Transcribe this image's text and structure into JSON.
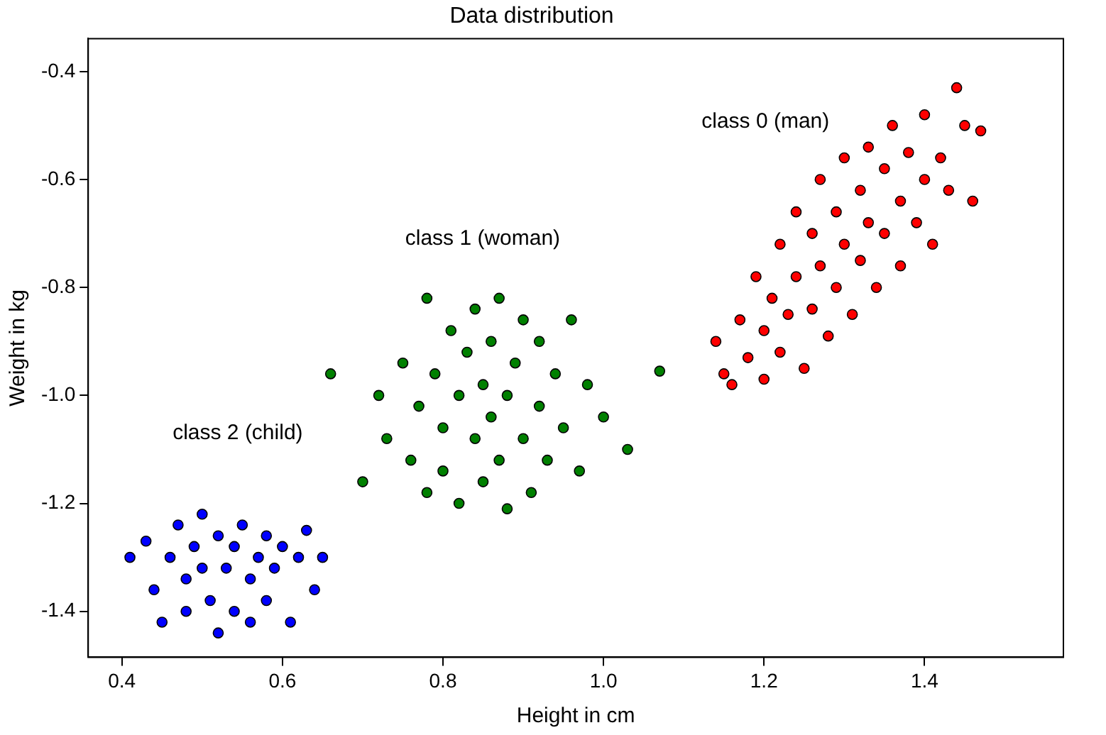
{
  "chart_data": {
    "type": "scatter",
    "title": "Data distribution",
    "xlabel": "Height in cm",
    "ylabel": "Weight in kg",
    "xlim": [
      0.358,
      1.573
    ],
    "xticks": [
      0.4,
      0.6,
      0.8,
      {
        "value": 1,
        "label": "1.0"
      },
      1.2,
      1.4
    ],
    "ylim": [
      -1.485,
      -0.339
    ],
    "yticks": [
      -1.4,
      -1.2,
      {
        "value": -1,
        "label": "-1.0"
      },
      -0.8,
      -0.6,
      -0.4
    ],
    "marker": "circle",
    "annotations": [
      "class 0 (man)",
      "class 1 (woman)",
      "class 2 (child)"
    ],
    "series": [
      {
        "color": "#ff0000",
        "x": [
          1.14,
          1.15,
          1.16,
          1.17,
          1.18,
          1.19,
          1.2,
          1.2,
          1.21,
          1.22,
          1.22,
          1.23,
          1.24,
          1.24,
          1.25,
          1.26,
          1.26,
          1.27,
          1.27,
          1.28,
          1.29,
          1.29,
          1.3,
          1.3,
          1.31,
          1.32,
          1.32,
          1.33,
          1.33,
          1.34,
          1.35,
          1.35,
          1.36,
          1.37,
          1.37,
          1.38,
          1.39,
          1.4,
          1.4,
          1.41,
          1.42,
          1.43,
          1.44,
          1.45,
          1.46,
          1.47
        ],
        "values": [
          -0.9,
          -0.96,
          -0.98,
          -0.86,
          -0.93,
          -0.78,
          -0.88,
          -0.97,
          -0.82,
          -0.72,
          -0.92,
          -0.85,
          -0.66,
          -0.78,
          -0.95,
          -0.7,
          -0.84,
          -0.6,
          -0.76,
          -0.89,
          -0.66,
          -0.8,
          -0.56,
          -0.72,
          -0.85,
          -0.62,
          -0.75,
          -0.54,
          -0.68,
          -0.8,
          -0.58,
          -0.7,
          -0.5,
          -0.64,
          -0.76,
          -0.55,
          -0.68,
          -0.48,
          -0.6,
          -0.72,
          -0.56,
          -0.62,
          -0.43,
          -0.5,
          -0.64,
          -0.51
        ]
      },
      {
        "color": "#008000",
        "x": [
          0.66,
          0.7,
          0.72,
          0.73,
          0.75,
          0.76,
          0.77,
          0.78,
          0.78,
          0.79,
          0.8,
          0.8,
          0.81,
          0.82,
          0.82,
          0.83,
          0.84,
          0.84,
          0.85,
          0.85,
          0.86,
          0.86,
          0.87,
          0.87,
          0.88,
          0.88,
          0.89,
          0.9,
          0.9,
          0.91,
          0.92,
          0.92,
          0.93,
          0.94,
          0.95,
          0.96,
          0.97,
          0.98,
          1.0,
          1.03,
          1.07
        ],
        "values": [
          -0.96,
          -1.16,
          -1.0,
          -1.08,
          -0.94,
          -1.12,
          -1.02,
          -0.82,
          -1.18,
          -0.96,
          -1.06,
          -1.14,
          -0.88,
          -1.0,
          -1.2,
          -0.92,
          -1.08,
          -0.84,
          -0.98,
          -1.16,
          -1.04,
          -0.9,
          -1.12,
          -0.82,
          -1.0,
          -1.21,
          -0.94,
          -1.08,
          -0.86,
          -1.18,
          -1.02,
          -0.9,
          -1.12,
          -0.96,
          -1.06,
          -0.86,
          -1.14,
          -0.98,
          -1.04,
          -1.1,
          -0.955
        ]
      },
      {
        "color": "#0000ff",
        "x": [
          0.41,
          0.43,
          0.44,
          0.45,
          0.46,
          0.47,
          0.48,
          0.48,
          0.49,
          0.5,
          0.5,
          0.51,
          0.52,
          0.52,
          0.53,
          0.54,
          0.54,
          0.55,
          0.56,
          0.56,
          0.57,
          0.58,
          0.58,
          0.59,
          0.6,
          0.61,
          0.62,
          0.63,
          0.64,
          0.65
        ],
        "values": [
          -1.3,
          -1.27,
          -1.36,
          -1.42,
          -1.3,
          -1.24,
          -1.34,
          -1.4,
          -1.28,
          -1.32,
          -1.22,
          -1.38,
          -1.26,
          -1.44,
          -1.32,
          -1.28,
          -1.4,
          -1.24,
          -1.34,
          -1.42,
          -1.3,
          -1.26,
          -1.38,
          -1.32,
          -1.28,
          -1.42,
          -1.3,
          -1.25,
          -1.36,
          -1.3
        ]
      }
    ]
  }
}
